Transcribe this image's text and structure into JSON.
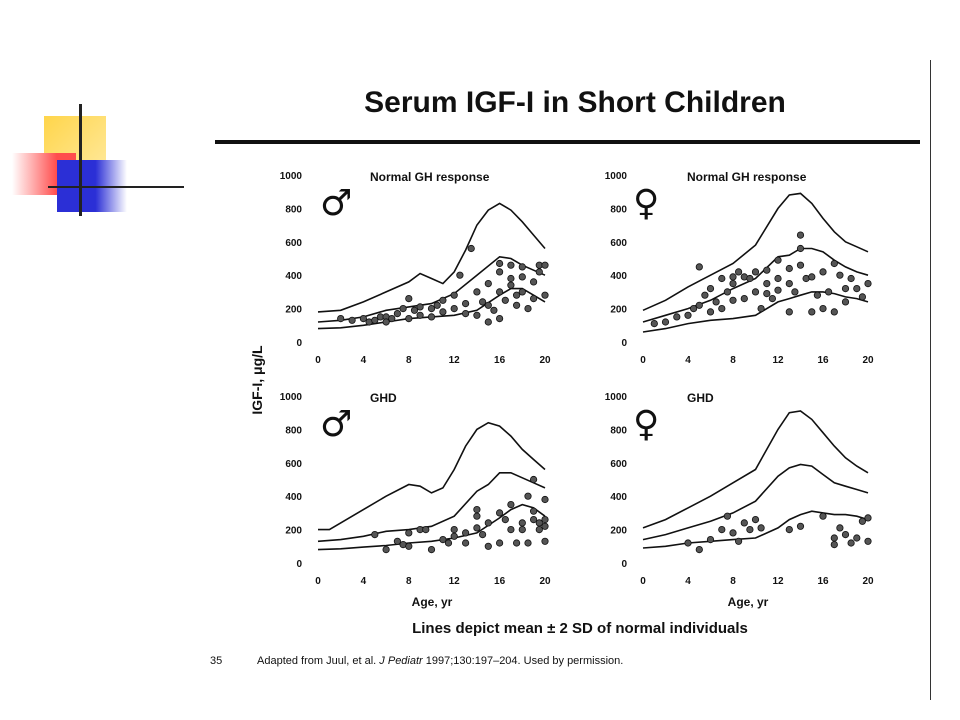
{
  "slide": {
    "title": "Serum IGF-I in Short Children",
    "caption": "Lines depict mean ± 2 SD of normal individuals",
    "slide_number": "35",
    "source_prefix": "Adapted from Juul, et al.",
    "source_journal": "J Pediatr",
    "source_suffix": "1997;130:197–204. Used by permission.",
    "y_axis_label": "IGF-I, μg/L",
    "x_axis_label": "Age, yr",
    "colors": {
      "deco_yellow": "#ffd54a",
      "deco_red": "#ff4d4d",
      "deco_blue": "#2b2fd6",
      "ink": "#111111"
    }
  },
  "chart_data": [
    {
      "type": "line",
      "panel": "male-normal",
      "sex_symbol": "♂",
      "title": "Normal GH response",
      "xlim": [
        0,
        20
      ],
      "ylim": [
        0,
        1000
      ],
      "xticks": [
        "0",
        "4",
        "8",
        "12",
        "16",
        "20"
      ],
      "yticks": [
        "0",
        "200",
        "400",
        "600",
        "800",
        "1000"
      ],
      "series": [
        {
          "x": [
            0,
            2,
            4,
            6,
            8,
            9,
            10,
            11,
            12,
            13,
            14,
            15,
            16,
            17,
            18,
            19,
            20
          ],
          "y": [
            180,
            190,
            240,
            300,
            360,
            410,
            380,
            350,
            420,
            550,
            700,
            790,
            830,
            790,
            720,
            640,
            560
          ]
        },
        {
          "x": [
            0,
            2,
            4,
            6,
            8,
            10,
            12,
            14,
            16,
            17,
            18,
            19,
            20
          ],
          "y": [
            120,
            130,
            150,
            190,
            210,
            230,
            290,
            400,
            510,
            500,
            460,
            430,
            400
          ]
        },
        {
          "x": [
            0,
            2,
            4,
            6,
            8,
            10,
            12,
            14,
            16,
            17,
            18,
            19,
            20
          ],
          "y": [
            80,
            85,
            100,
            120,
            140,
            150,
            160,
            190,
            280,
            320,
            320,
            280,
            240
          ]
        }
      ],
      "points": [
        [
          2,
          140
        ],
        [
          3,
          130
        ],
        [
          4,
          140
        ],
        [
          4.5,
          120
        ],
        [
          5,
          130
        ],
        [
          5.5,
          150
        ],
        [
          6,
          150
        ],
        [
          6,
          120
        ],
        [
          6.5,
          140
        ],
        [
          7,
          170
        ],
        [
          7.5,
          200
        ],
        [
          8,
          140
        ],
        [
          8,
          260
        ],
        [
          8.5,
          190
        ],
        [
          9,
          210
        ],
        [
          9,
          160
        ],
        [
          10,
          150
        ],
        [
          10,
          200
        ],
        [
          10.5,
          220
        ],
        [
          11,
          180
        ],
        [
          11,
          250
        ],
        [
          12,
          200
        ],
        [
          12,
          280
        ],
        [
          12.5,
          400
        ],
        [
          13,
          230
        ],
        [
          13.5,
          560
        ],
        [
          13,
          170
        ],
        [
          14,
          300
        ],
        [
          14,
          160
        ],
        [
          14.5,
          240
        ],
        [
          15,
          350
        ],
        [
          15,
          220
        ],
        [
          15.5,
          190
        ],
        [
          16,
          420
        ],
        [
          16,
          300
        ],
        [
          16,
          470
        ],
        [
          16.5,
          250
        ],
        [
          17,
          380
        ],
        [
          17,
          460
        ],
        [
          17,
          340
        ],
        [
          17.5,
          280
        ],
        [
          18,
          300
        ],
        [
          18,
          390
        ],
        [
          18,
          450
        ],
        [
          18.5,
          200
        ],
        [
          19,
          260
        ],
        [
          19,
          360
        ],
        [
          19.5,
          420
        ],
        [
          19.5,
          460
        ],
        [
          20,
          460
        ],
        [
          20,
          280
        ],
        [
          16,
          140
        ],
        [
          15,
          120
        ],
        [
          17.5,
          220
        ]
      ]
    },
    {
      "type": "line",
      "panel": "female-normal",
      "sex_symbol": "♀",
      "title": "Normal GH response",
      "xlim": [
        0,
        20
      ],
      "ylim": [
        0,
        1000
      ],
      "xticks": [
        "0",
        "4",
        "8",
        "12",
        "16",
        "20"
      ],
      "yticks": [
        "0",
        "200",
        "400",
        "600",
        "800",
        "1000"
      ],
      "series": [
        {
          "x": [
            0,
            2,
            4,
            6,
            8,
            10,
            12,
            13,
            14,
            15,
            16,
            17,
            18,
            19,
            20
          ],
          "y": [
            190,
            250,
            330,
            400,
            470,
            580,
            800,
            880,
            890,
            830,
            740,
            660,
            600,
            570,
            540
          ]
        },
        {
          "x": [
            0,
            2,
            4,
            6,
            8,
            10,
            12,
            13,
            14,
            15,
            16,
            17,
            18,
            19,
            20
          ],
          "y": [
            120,
            160,
            200,
            250,
            320,
            380,
            510,
            520,
            560,
            560,
            540,
            490,
            450,
            420,
            400
          ]
        },
        {
          "x": [
            0,
            2,
            4,
            6,
            8,
            10,
            12,
            13,
            14,
            15,
            16,
            17,
            18,
            19,
            20
          ],
          "y": [
            60,
            80,
            110,
            130,
            140,
            160,
            240,
            260,
            280,
            300,
            300,
            290,
            270,
            260,
            240
          ]
        }
      ],
      "points": [
        [
          1,
          110
        ],
        [
          2,
          120
        ],
        [
          3,
          150
        ],
        [
          4,
          160
        ],
        [
          4.5,
          200
        ],
        [
          5,
          220
        ],
        [
          5,
          450
        ],
        [
          5.5,
          280
        ],
        [
          6,
          180
        ],
        [
          6,
          320
        ],
        [
          6.5,
          240
        ],
        [
          7,
          200
        ],
        [
          7,
          380
        ],
        [
          7.5,
          300
        ],
        [
          8,
          350
        ],
        [
          8,
          250
        ],
        [
          8,
          390
        ],
        [
          8.5,
          420
        ],
        [
          9,
          260
        ],
        [
          9,
          390
        ],
        [
          9.5,
          380
        ],
        [
          10,
          300
        ],
        [
          10,
          420
        ],
        [
          10.5,
          200
        ],
        [
          11,
          290
        ],
        [
          11,
          430
        ],
        [
          11.5,
          260
        ],
        [
          12,
          310
        ],
        [
          12,
          380
        ],
        [
          12,
          490
        ],
        [
          13,
          350
        ],
        [
          13,
          440
        ],
        [
          13.5,
          300
        ],
        [
          14,
          460
        ],
        [
          14,
          640
        ],
        [
          14,
          560
        ],
        [
          14.5,
          380
        ],
        [
          15,
          180
        ],
        [
          15,
          390
        ],
        [
          15.5,
          280
        ],
        [
          16,
          200
        ],
        [
          16,
          420
        ],
        [
          16.5,
          300
        ],
        [
          17,
          180
        ],
        [
          17,
          470
        ],
        [
          17.5,
          400
        ],
        [
          18,
          320
        ],
        [
          18,
          240
        ],
        [
          18.5,
          380
        ],
        [
          19,
          320
        ],
        [
          19.5,
          270
        ],
        [
          20,
          350
        ],
        [
          13,
          180
        ],
        [
          11,
          350
        ]
      ]
    },
    {
      "type": "line",
      "panel": "male-ghd",
      "sex_symbol": "♂",
      "title": "GHD",
      "xlim": [
        0,
        20
      ],
      "ylim": [
        0,
        1000
      ],
      "xticks": [
        "0",
        "4",
        "8",
        "12",
        "16",
        "20"
      ],
      "yticks": [
        "0",
        "200",
        "400",
        "600",
        "800",
        "1000"
      ],
      "series": [
        {
          "x": [
            0,
            1,
            2,
            4,
            6,
            8,
            9,
            10,
            11,
            12,
            13,
            14,
            15,
            16,
            17,
            18,
            19,
            20
          ],
          "y": [
            200,
            200,
            240,
            320,
            400,
            470,
            460,
            420,
            450,
            560,
            700,
            800,
            840,
            820,
            760,
            680,
            620,
            560
          ]
        },
        {
          "x": [
            0,
            2,
            4,
            6,
            8,
            10,
            12,
            14,
            15,
            16,
            17,
            18,
            19,
            20
          ],
          "y": [
            130,
            140,
            160,
            190,
            200,
            220,
            280,
            430,
            470,
            540,
            540,
            510,
            480,
            450
          ]
        },
        {
          "x": [
            0,
            2,
            4,
            6,
            8,
            10,
            12,
            14,
            16,
            17,
            18,
            19,
            20
          ],
          "y": [
            80,
            85,
            95,
            105,
            120,
            130,
            150,
            180,
            270,
            320,
            350,
            330,
            280
          ]
        }
      ],
      "points": [
        [
          5,
          170
        ],
        [
          6,
          80
        ],
        [
          7,
          130
        ],
        [
          7.5,
          110
        ],
        [
          8,
          100
        ],
        [
          8,
          180
        ],
        [
          9,
          200
        ],
        [
          9.5,
          200
        ],
        [
          10,
          80
        ],
        [
          11,
          140
        ],
        [
          11.5,
          120
        ],
        [
          12,
          160
        ],
        [
          12,
          200
        ],
        [
          13,
          180
        ],
        [
          13,
          120
        ],
        [
          14,
          210
        ],
        [
          14,
          280
        ],
        [
          14,
          320
        ],
        [
          14.5,
          170
        ],
        [
          15,
          100
        ],
        [
          15,
          240
        ],
        [
          16,
          300
        ],
        [
          16,
          120
        ],
        [
          16.5,
          260
        ],
        [
          17,
          200
        ],
        [
          17,
          350
        ],
        [
          17.5,
          120
        ],
        [
          18,
          200
        ],
        [
          18,
          240
        ],
        [
          18.5,
          400
        ],
        [
          18.5,
          120
        ],
        [
          19,
          260
        ],
        [
          19,
          310
        ],
        [
          19,
          500
        ],
        [
          19.5,
          240
        ],
        [
          19.5,
          200
        ],
        [
          20,
          220
        ],
        [
          20,
          380
        ],
        [
          20,
          260
        ],
        [
          20,
          130
        ]
      ]
    },
    {
      "type": "line",
      "panel": "female-ghd",
      "sex_symbol": "♀",
      "title": "GHD",
      "xlim": [
        0,
        20
      ],
      "ylim": [
        0,
        1000
      ],
      "xticks": [
        "0",
        "4",
        "8",
        "12",
        "16",
        "20"
      ],
      "yticks": [
        "0",
        "200",
        "400",
        "600",
        "800",
        "1000"
      ],
      "series": [
        {
          "x": [
            0,
            2,
            4,
            6,
            8,
            10,
            12,
            13,
            14,
            15,
            16,
            17,
            18,
            19,
            20
          ],
          "y": [
            210,
            260,
            330,
            400,
            480,
            560,
            800,
            900,
            910,
            860,
            780,
            700,
            630,
            580,
            540
          ]
        },
        {
          "x": [
            0,
            2,
            4,
            6,
            8,
            10,
            12,
            13,
            14,
            15,
            16,
            17,
            18,
            19,
            20
          ],
          "y": [
            140,
            170,
            210,
            250,
            300,
            370,
            520,
            570,
            590,
            580,
            530,
            480,
            460,
            440,
            420
          ]
        },
        {
          "x": [
            0,
            2,
            4,
            6,
            8,
            10,
            12,
            13,
            14,
            15,
            16,
            17,
            18,
            19,
            20
          ],
          "y": [
            90,
            100,
            120,
            130,
            140,
            150,
            210,
            260,
            290,
            310,
            300,
            290,
            290,
            280,
            260
          ]
        }
      ],
      "points": [
        [
          4,
          120
        ],
        [
          5,
          80
        ],
        [
          6,
          140
        ],
        [
          7,
          200
        ],
        [
          7.5,
          280
        ],
        [
          8,
          180
        ],
        [
          8.5,
          130
        ],
        [
          9,
          240
        ],
        [
          9.5,
          200
        ],
        [
          10,
          260
        ],
        [
          10.5,
          210
        ],
        [
          13,
          200
        ],
        [
          14,
          220
        ],
        [
          16,
          280
        ],
        [
          17,
          150
        ],
        [
          17.5,
          210
        ],
        [
          18,
          170
        ],
        [
          19,
          150
        ],
        [
          19.5,
          250
        ],
        [
          20,
          270
        ],
        [
          20,
          130
        ],
        [
          18.5,
          120
        ],
        [
          17,
          110
        ]
      ]
    }
  ]
}
